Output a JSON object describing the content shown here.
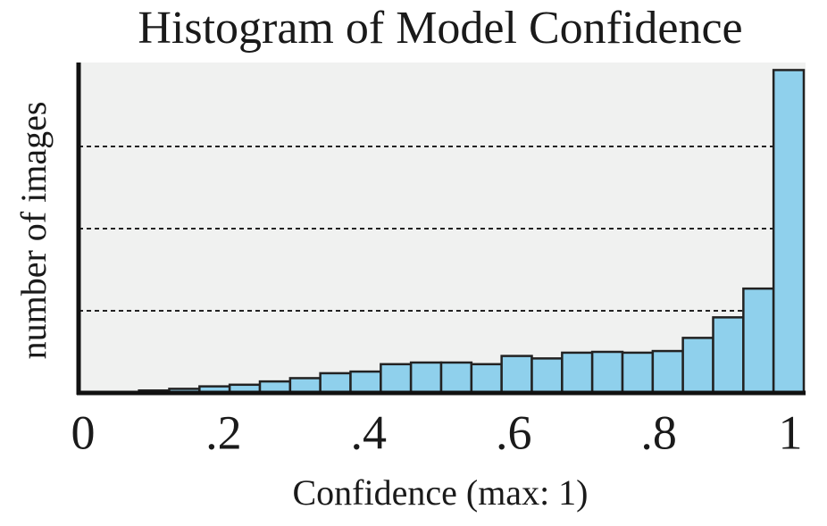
{
  "chart_data": {
    "type": "histogram",
    "title": "Histogram of Model Confidence",
    "x_label": "Confidence (max: 1)",
    "y_label": "number of images",
    "bins": [
      0,
      0.0417,
      0.0833,
      0.125,
      0.1667,
      0.2083,
      0.25,
      0.2917,
      0.3333,
      0.375,
      0.4167,
      0.4583,
      0.5,
      0.5417,
      0.5833,
      0.625,
      0.6667,
      0.7083,
      0.75,
      0.7917,
      0.8333,
      0.875,
      0.9167,
      0.9583,
      1
    ],
    "values": [
      0,
      0.01,
      0.03,
      0.05,
      0.08,
      0.1,
      0.14,
      0.18,
      0.24,
      0.26,
      0.35,
      0.37,
      0.37,
      0.35,
      0.45,
      0.42,
      0.49,
      0.5,
      0.49,
      0.51,
      0.67,
      0.92,
      1.27,
      3.93
    ],
    "color": "#8fd0ec",
    "xlim": [
      0,
      1
    ],
    "xticks": [
      0,
      {
        "value": 0.2,
        "label": ".2"
      },
      {
        "value": 0.4,
        "label": ".4"
      },
      {
        "value": 0.6,
        "label": ".6"
      },
      {
        "value": 0.8,
        "label": ".8"
      },
      1
    ],
    "ylim": [
      0,
      4
    ],
    "yticks": [
      1,
      2,
      3
    ],
    "grid": true
  }
}
